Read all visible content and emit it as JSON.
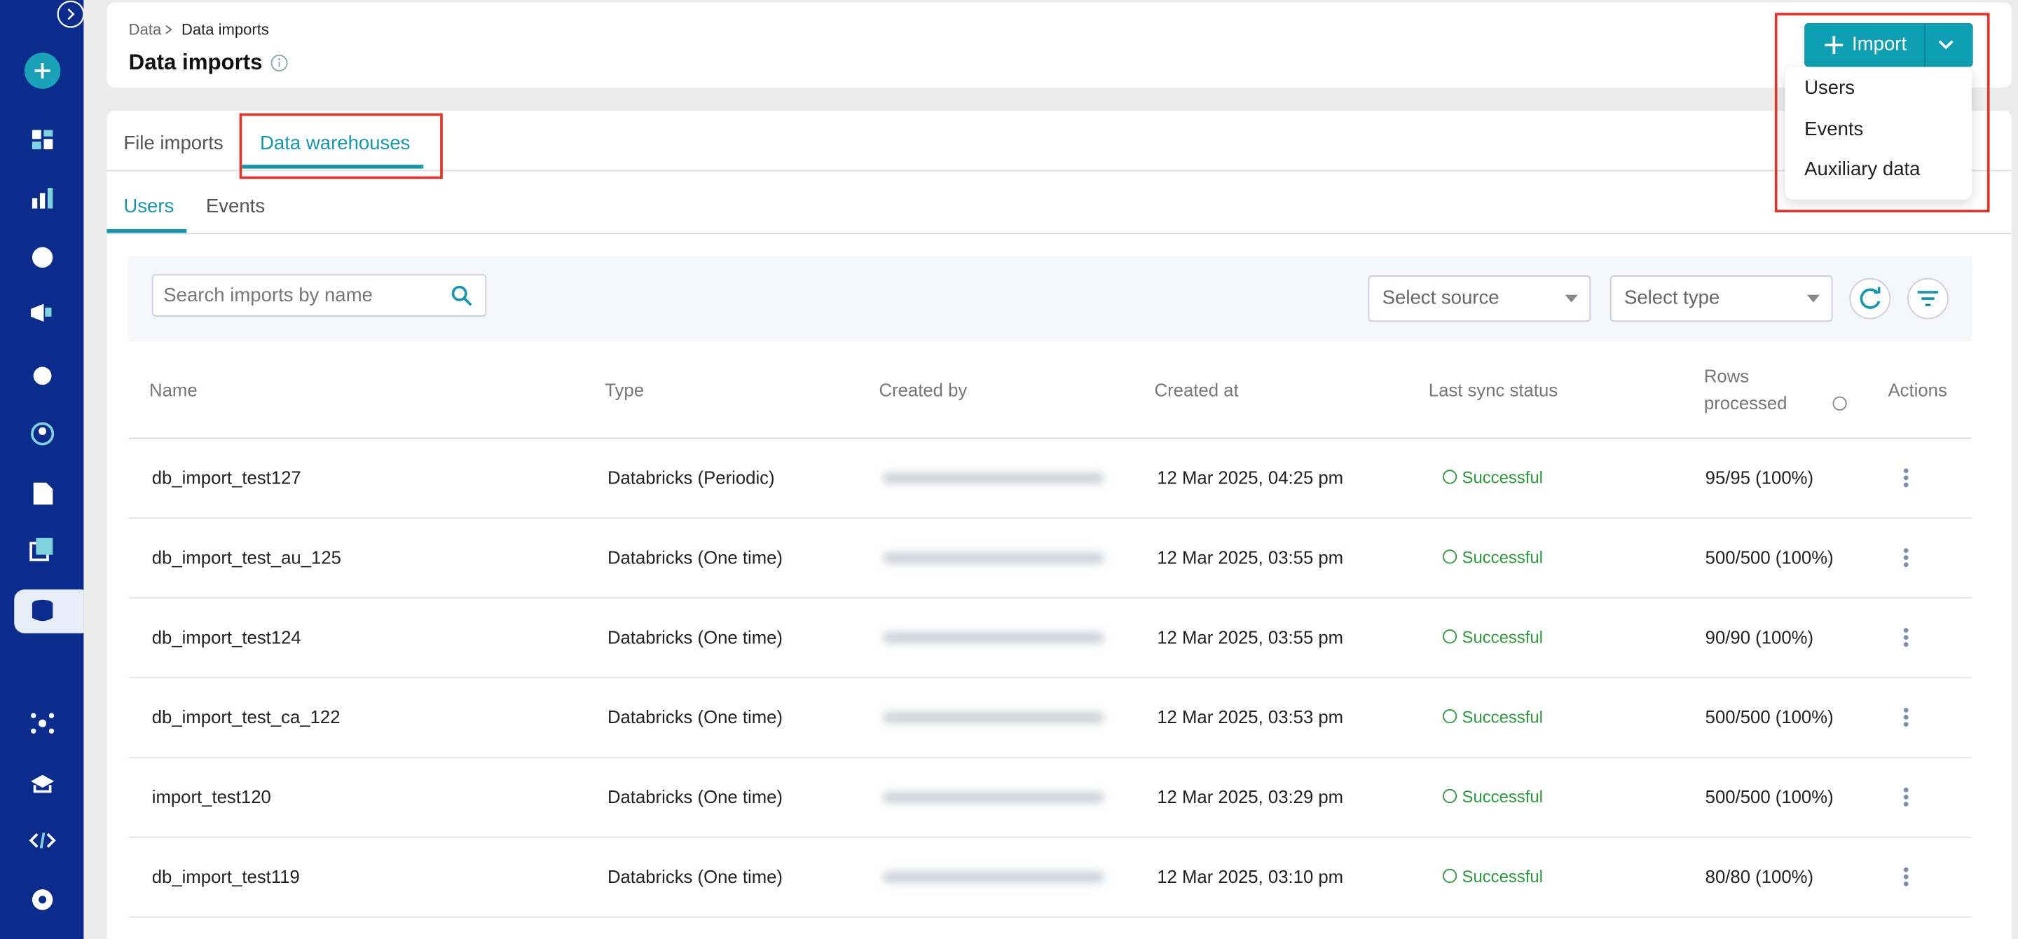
{
  "breadcrumb": [
    "Data",
    "Data imports"
  ],
  "title": "Data imports",
  "import_button": "Import",
  "import_menu": [
    "Users",
    "Events",
    "Auxiliary data"
  ],
  "tabs": [
    "File imports",
    "Data warehouses"
  ],
  "subtabs": [
    "Users",
    "Events"
  ],
  "search_placeholder": "Search imports by name",
  "filters": [
    "Select source",
    "Select type"
  ],
  "table": {
    "columns": [
      "Name",
      "Type",
      "Created by",
      "Created at",
      "Last sync status",
      "Rows processed",
      "Actions"
    ],
    "rows": [
      [
        "db_import_test127",
        "Databricks (Periodic)",
        "12 Mar 2025, 04:25 pm",
        "Successful",
        "95/95 (100%)"
      ],
      [
        "db_import_test_au_125",
        "Databricks (One time)",
        "12 Mar 2025, 03:55 pm",
        "Successful",
        "500/500 (100%)"
      ],
      [
        "db_import_test124",
        "Databricks (One time)",
        "12 Mar 2025, 03:55 pm",
        "Successful",
        "90/90 (100%)"
      ],
      [
        "db_import_test_ca_122",
        "Databricks (One time)",
        "12 Mar 2025, 03:53 pm",
        "Successful",
        "500/500 (100%)"
      ],
      [
        "import_test120",
        "Databricks (One time)",
        "12 Mar 2025, 03:29 pm",
        "Successful",
        "500/500 (100%)"
      ],
      [
        "db_import_test119",
        "Databricks (One time)",
        "12 Mar 2025, 03:10 pm",
        "Successful",
        "80/80 (100%)"
      ]
    ]
  }
}
